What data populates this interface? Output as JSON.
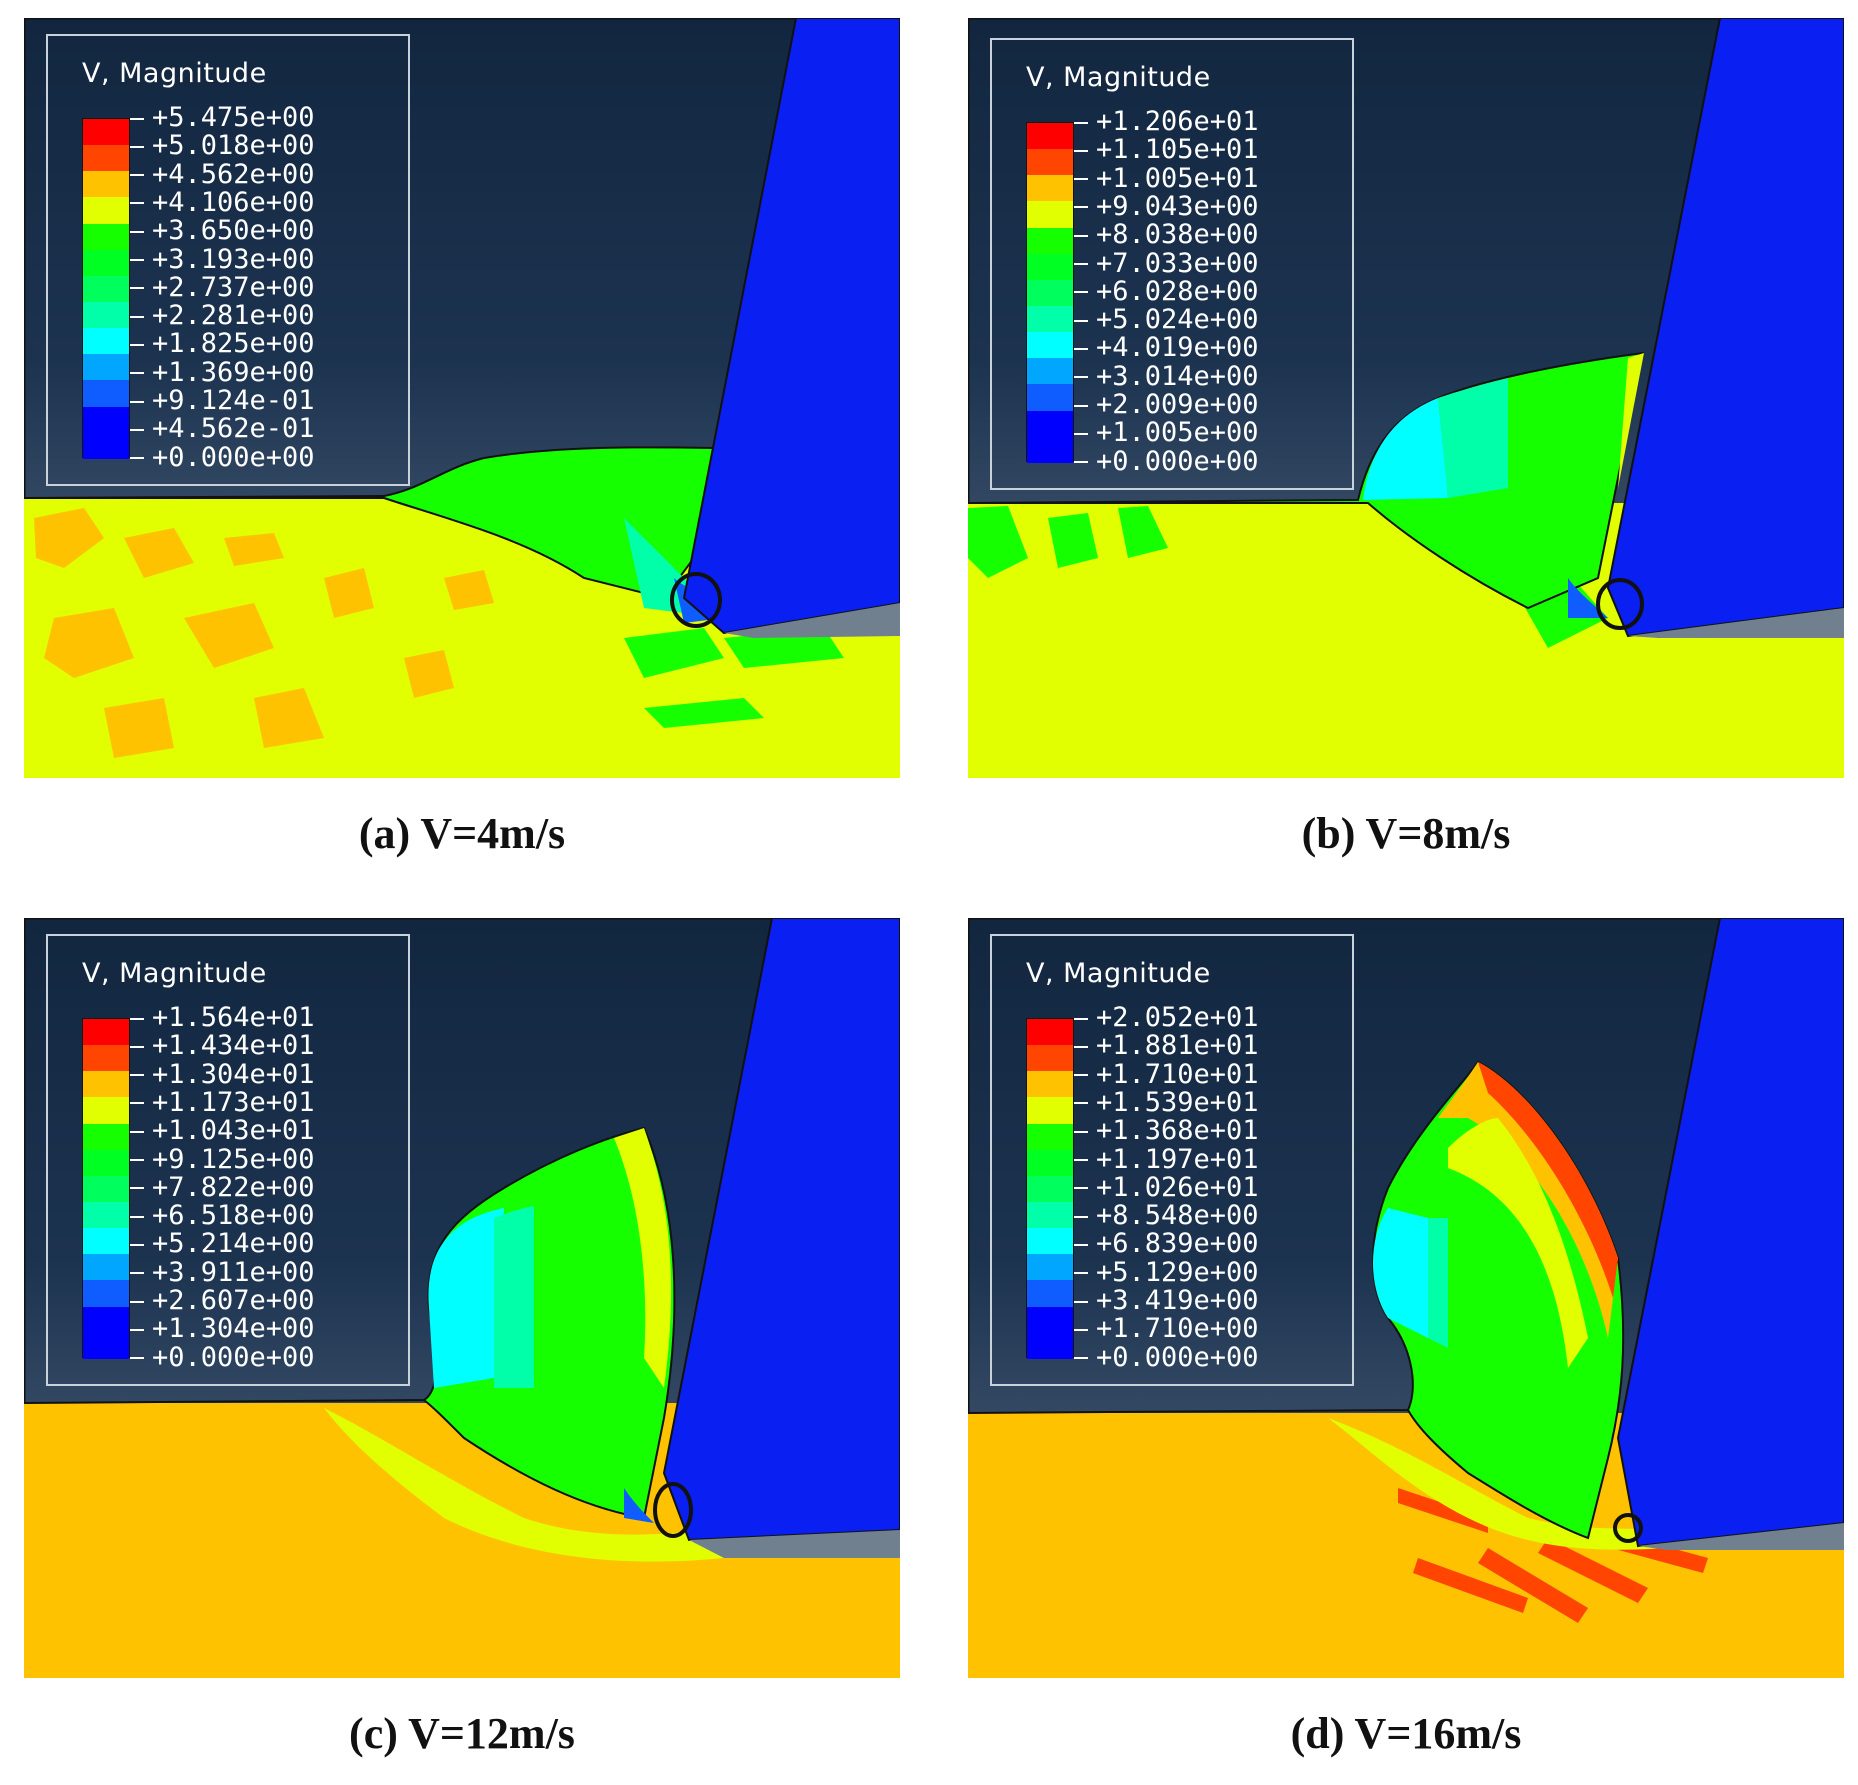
{
  "colors": {
    "background_top": "#12263f",
    "background_bottom": "#5a6e84",
    "tool": "#0a1ff2",
    "tool_rake": "#71808f",
    "scale": [
      "#0000ff",
      "#0f5cff",
      "#00a6ff",
      "#00ffff",
      "#00ffa8",
      "#00ff5c",
      "#00ff22",
      "#16ff00",
      "#e1ff00",
      "#ffc200",
      "#ff8000",
      "#ff4500",
      "#ff0000"
    ]
  },
  "panels": [
    {
      "id": "a",
      "caption": "(a) V=4m/s",
      "legend_title": "V, Magnitude",
      "legend_values": [
        "+5.475e+00",
        "+5.018e+00",
        "+4.562e+00",
        "+4.106e+00",
        "+3.650e+00",
        "+3.193e+00",
        "+2.737e+00",
        "+2.281e+00",
        "+1.825e+00",
        "+1.369e+00",
        "+9.124e-01",
        "+4.562e-01",
        "+0.000e+00"
      ]
    },
    {
      "id": "b",
      "caption": "(b) V=8m/s",
      "legend_title": "V, Magnitude",
      "legend_values": [
        "+1.206e+01",
        "+1.105e+01",
        "+1.005e+01",
        "+9.043e+00",
        "+8.038e+00",
        "+7.033e+00",
        "+6.028e+00",
        "+5.024e+00",
        "+4.019e+00",
        "+3.014e+00",
        "+2.009e+00",
        "+1.005e+00",
        "+0.000e+00"
      ]
    },
    {
      "id": "c",
      "caption": "(c) V=12m/s",
      "legend_title": "V, Magnitude",
      "legend_values": [
        "+1.564e+01",
        "+1.434e+01",
        "+1.304e+01",
        "+1.173e+01",
        "+1.043e+01",
        "+9.125e+00",
        "+7.822e+00",
        "+6.518e+00",
        "+5.214e+00",
        "+3.911e+00",
        "+2.607e+00",
        "+1.304e+00",
        "+0.000e+00"
      ]
    },
    {
      "id": "d",
      "caption": "(d) V=16m/s",
      "legend_title": "V, Magnitude",
      "legend_values": [
        "+2.052e+01",
        "+1.881e+01",
        "+1.710e+01",
        "+1.539e+01",
        "+1.368e+01",
        "+1.197e+01",
        "+1.026e+01",
        "+8.548e+00",
        "+6.839e+00",
        "+5.129e+00",
        "+3.419e+00",
        "+1.710e+00",
        "+0.000e+00"
      ]
    }
  ]
}
